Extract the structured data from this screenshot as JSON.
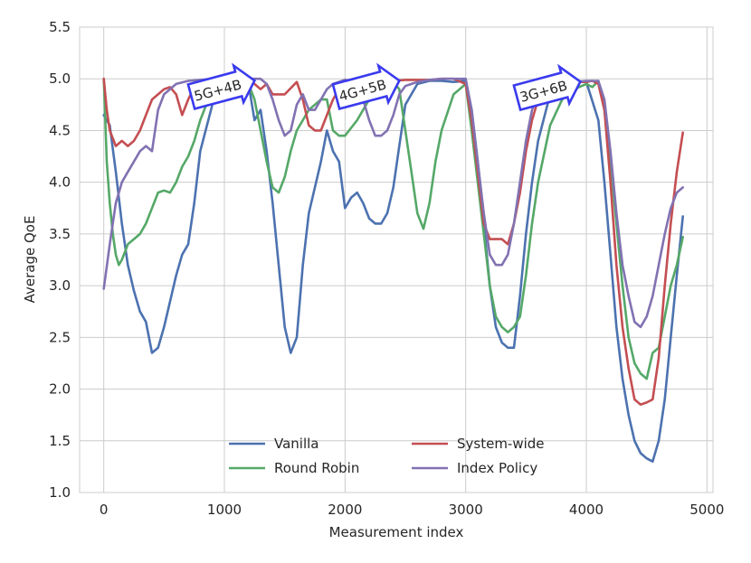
{
  "chart_data": {
    "type": "line",
    "xlabel": "Measurement index",
    "ylabel": "Average QoE",
    "xlim": [
      -200,
      5050
    ],
    "ylim": [
      1.0,
      5.5
    ],
    "xticks": [
      0,
      1000,
      2000,
      3000,
      4000,
      5000
    ],
    "yticks": [
      1.0,
      1.5,
      2.0,
      2.5,
      3.0,
      3.5,
      4.0,
      4.5,
      5.0,
      5.5
    ],
    "xtick_labels": [
      "0",
      "1000",
      "2000",
      "3000",
      "4000",
      "5000"
    ],
    "ytick_labels": [
      "1.0",
      "1.5",
      "2.0",
      "2.5",
      "3.0",
      "3.5",
      "4.0",
      "4.5",
      "5.0",
      "5.5"
    ],
    "grid": true,
    "legend_position": "bottom-center",
    "series": [
      {
        "name": "Vanilla",
        "color": "#4c72b0",
        "x": [
          0,
          50,
          100,
          150,
          200,
          250,
          300,
          350,
          400,
          450,
          500,
          550,
          600,
          650,
          700,
          750,
          800,
          900,
          1000,
          1100,
          1200,
          1250,
          1300,
          1350,
          1400,
          1450,
          1500,
          1550,
          1600,
          1650,
          1700,
          1750,
          1800,
          1850,
          1900,
          1950,
          2000,
          2050,
          2100,
          2150,
          2200,
          2250,
          2300,
          2350,
          2400,
          2450,
          2500,
          2600,
          2700,
          2800,
          2900,
          3000,
          3050,
          3100,
          3150,
          3200,
          3250,
          3300,
          3350,
          3400,
          3450,
          3500,
          3550,
          3600,
          3700,
          3800,
          3900,
          4000,
          4100,
          4150,
          4200,
          4250,
          4300,
          4350,
          4400,
          4450,
          4500,
          4550,
          4600,
          4650,
          4700,
          4750,
          4800
        ],
        "values": [
          4.65,
          4.55,
          4.1,
          3.6,
          3.2,
          2.95,
          2.75,
          2.65,
          2.35,
          2.4,
          2.6,
          2.85,
          3.1,
          3.3,
          3.4,
          3.8,
          4.3,
          4.75,
          4.95,
          5.0,
          4.95,
          4.6,
          4.7,
          4.3,
          3.8,
          3.2,
          2.6,
          2.35,
          2.5,
          3.2,
          3.7,
          3.95,
          4.2,
          4.5,
          4.3,
          4.2,
          3.75,
          3.85,
          3.9,
          3.8,
          3.65,
          3.6,
          3.6,
          3.7,
          3.95,
          4.35,
          4.75,
          4.95,
          4.98,
          4.98,
          4.97,
          4.98,
          4.7,
          4.2,
          3.6,
          3.0,
          2.6,
          2.45,
          2.4,
          2.4,
          2.9,
          3.5,
          4.0,
          4.4,
          4.85,
          4.95,
          4.97,
          4.97,
          4.6,
          4.0,
          3.3,
          2.6,
          2.1,
          1.75,
          1.5,
          1.38,
          1.33,
          1.3,
          1.5,
          1.9,
          2.5,
          3.1,
          3.67
        ]
      },
      {
        "name": "Round Robin",
        "color": "#55a868",
        "x": [
          0,
          25,
          50,
          75,
          100,
          125,
          150,
          200,
          250,
          300,
          350,
          400,
          450,
          500,
          550,
          600,
          650,
          700,
          750,
          800,
          900,
          1000,
          1100,
          1200,
          1250,
          1300,
          1350,
          1400,
          1450,
          1500,
          1550,
          1600,
          1650,
          1700,
          1750,
          1800,
          1850,
          1900,
          1950,
          2000,
          2100,
          2200,
          2300,
          2400,
          2450,
          2500,
          2550,
          2600,
          2650,
          2700,
          2750,
          2800,
          2900,
          3000,
          3050,
          3100,
          3150,
          3200,
          3250,
          3300,
          3350,
          3400,
          3450,
          3500,
          3550,
          3600,
          3700,
          3800,
          3900,
          4000,
          4050,
          4100,
          4150,
          4200,
          4250,
          4300,
          4350,
          4400,
          4450,
          4500,
          4550,
          4600,
          4650,
          4700,
          4750,
          4800
        ],
        "values": [
          5.0,
          4.2,
          3.8,
          3.5,
          3.3,
          3.2,
          3.25,
          3.4,
          3.45,
          3.5,
          3.6,
          3.75,
          3.9,
          3.92,
          3.9,
          4.0,
          4.15,
          4.25,
          4.4,
          4.6,
          4.9,
          4.97,
          4.97,
          4.95,
          4.8,
          4.5,
          4.2,
          3.95,
          3.9,
          4.05,
          4.3,
          4.5,
          4.6,
          4.7,
          4.75,
          4.8,
          4.8,
          4.5,
          4.45,
          4.45,
          4.6,
          4.8,
          4.95,
          4.97,
          4.9,
          4.5,
          4.1,
          3.7,
          3.55,
          3.8,
          4.2,
          4.5,
          4.85,
          4.95,
          4.5,
          4.0,
          3.5,
          3.0,
          2.7,
          2.6,
          2.55,
          2.6,
          2.7,
          3.1,
          3.6,
          4.0,
          4.55,
          4.8,
          4.9,
          4.95,
          4.92,
          4.98,
          4.7,
          4.2,
          3.6,
          3.0,
          2.5,
          2.25,
          2.15,
          2.1,
          2.35,
          2.4,
          2.7,
          3.0,
          3.2,
          3.47
        ]
      },
      {
        "name": "System-wide",
        "color": "#c44e52",
        "x": [
          0,
          25,
          50,
          100,
          150,
          200,
          250,
          300,
          350,
          400,
          450,
          500,
          550,
          600,
          650,
          700,
          750,
          800,
          900,
          1000,
          1100,
          1150,
          1200,
          1250,
          1300,
          1350,
          1400,
          1500,
          1600,
          1650,
          1700,
          1750,
          1800,
          1850,
          1900,
          1950,
          2000,
          2100,
          2200,
          2300,
          2400,
          2500,
          2600,
          2700,
          2800,
          2900,
          3000,
          3050,
          3100,
          3150,
          3200,
          3250,
          3300,
          3350,
          3400,
          3450,
          3500,
          3550,
          3600,
          3650,
          3700,
          3800,
          3900,
          4000,
          4050,
          4100,
          4150,
          4200,
          4250,
          4300,
          4350,
          4400,
          4450,
          4500,
          4550,
          4600,
          4650,
          4700,
          4750,
          4800
        ],
        "values": [
          5.0,
          4.7,
          4.5,
          4.35,
          4.4,
          4.35,
          4.4,
          4.5,
          4.65,
          4.8,
          4.85,
          4.9,
          4.92,
          4.85,
          4.65,
          4.8,
          4.92,
          4.96,
          4.97,
          4.98,
          4.97,
          4.98,
          4.98,
          4.95,
          4.9,
          4.95,
          4.85,
          4.85,
          4.97,
          4.8,
          4.55,
          4.5,
          4.5,
          4.65,
          4.8,
          4.9,
          4.95,
          4.97,
          4.98,
          4.98,
          4.98,
          4.99,
          4.99,
          4.99,
          5.0,
          5.0,
          4.95,
          4.6,
          4.1,
          3.6,
          3.45,
          3.45,
          3.45,
          3.4,
          3.6,
          3.9,
          4.3,
          4.6,
          4.8,
          4.9,
          4.95,
          4.95,
          4.97,
          4.97,
          4.98,
          4.95,
          4.7,
          4.0,
          3.2,
          2.6,
          2.2,
          1.9,
          1.85,
          1.87,
          1.9,
          2.3,
          3.0,
          3.6,
          4.1,
          4.48
        ]
      },
      {
        "name": "Index Policy",
        "color": "#8172b2",
        "x": [
          0,
          50,
          100,
          150,
          200,
          250,
          300,
          350,
          400,
          450,
          500,
          600,
          700,
          800,
          900,
          1000,
          1100,
          1200,
          1300,
          1350,
          1400,
          1450,
          1500,
          1550,
          1600,
          1650,
          1700,
          1750,
          1800,
          1850,
          1900,
          2000,
          2100,
          2150,
          2200,
          2250,
          2300,
          2350,
          2400,
          2450,
          2500,
          2550,
          2600,
          2700,
          2800,
          2900,
          3000,
          3050,
          3100,
          3150,
          3200,
          3250,
          3300,
          3350,
          3400,
          3450,
          3500,
          3550,
          3600,
          3700,
          3800,
          3900,
          4000,
          4050,
          4100,
          4150,
          4200,
          4250,
          4300,
          4350,
          4400,
          4450,
          4500,
          4550,
          4600,
          4650,
          4700,
          4750,
          4800
        ],
        "values": [
          2.97,
          3.4,
          3.8,
          4.0,
          4.1,
          4.2,
          4.3,
          4.35,
          4.3,
          4.7,
          4.85,
          4.95,
          4.98,
          4.99,
          5.0,
          5.0,
          5.0,
          5.0,
          5.0,
          4.95,
          4.8,
          4.6,
          4.45,
          4.5,
          4.75,
          4.85,
          4.7,
          4.7,
          4.8,
          4.9,
          4.95,
          4.99,
          4.97,
          4.8,
          4.6,
          4.45,
          4.45,
          4.5,
          4.65,
          4.85,
          4.93,
          4.95,
          4.97,
          4.99,
          5.0,
          5.0,
          5.0,
          4.7,
          4.2,
          3.7,
          3.3,
          3.2,
          3.2,
          3.3,
          3.6,
          4.0,
          4.4,
          4.7,
          4.85,
          4.93,
          4.95,
          4.97,
          4.98,
          4.98,
          4.98,
          4.8,
          4.3,
          3.7,
          3.2,
          2.9,
          2.65,
          2.6,
          2.7,
          2.9,
          3.2,
          3.5,
          3.75,
          3.9,
          3.95
        ]
      }
    ],
    "annotations": [
      {
        "text": "5G+4B",
        "x": 1250,
        "y": 5.0
      },
      {
        "text": "4G+5B",
        "x": 2450,
        "y": 5.0
      },
      {
        "text": "3G+6B",
        "x": 3950,
        "y": 4.99
      }
    ]
  }
}
